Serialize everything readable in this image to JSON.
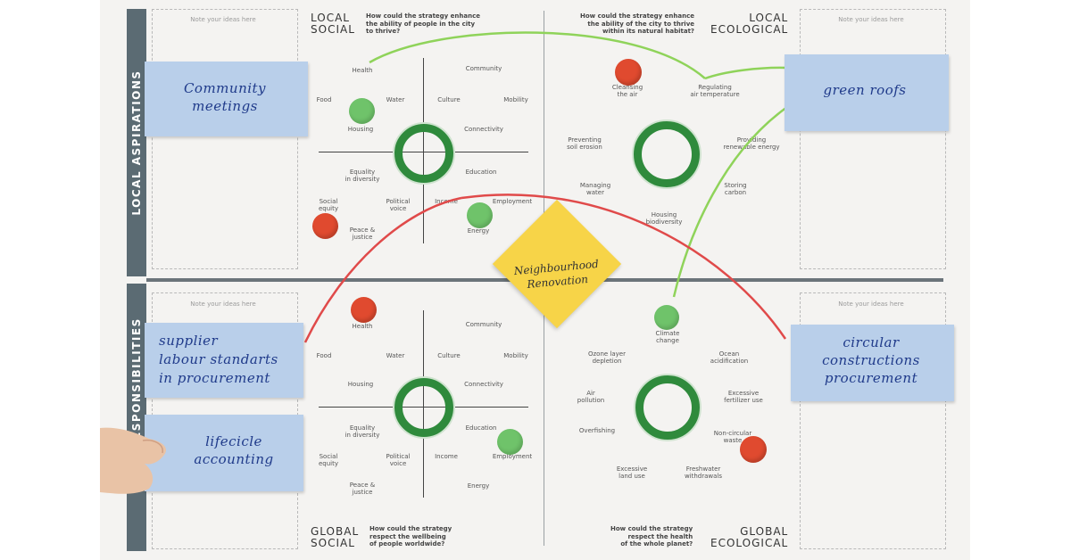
{
  "board": {
    "band_top": "LOCAL ASPIRATIONS",
    "band_bottom": "RESPONSIBILITIES",
    "note_hint": "Note your ideas here",
    "quadrants": {
      "local_social": {
        "title_1": "LOCAL",
        "title_2": "SOCIAL",
        "question": [
          "How could the strategy enhance",
          "the ability of people in the city",
          "to thrive?"
        ]
      },
      "local_ecological": {
        "title_1": "LOCAL",
        "title_2": "ECOLOGICAL",
        "question": [
          "How could the strategy enhance",
          "the ability of the city to thrive",
          "within its natural habitat?"
        ]
      },
      "global_social": {
        "title_1": "GLOBAL",
        "title_2": "SOCIAL",
        "question": [
          "How could the strategy",
          "respect the wellbeing",
          "of people worldwide?"
        ]
      },
      "global_ecological": {
        "title_1": "GLOBAL",
        "title_2": "ECOLOGICAL",
        "question": [
          "How could the strategy",
          "respect the health",
          "of the whole planet?"
        ]
      }
    },
    "local_social_labels": [
      "Health",
      "Community",
      "Food",
      "Water",
      "Culture",
      "Mobility",
      "Housing",
      "Connectivity",
      "Equality in diversity",
      "Education",
      "Social equity",
      "Political voice",
      "Income",
      "Employment",
      "Peace & justice",
      "Energy"
    ],
    "local_eco_labels": [
      "Cleansing the air",
      "Regulating air temperature",
      "Preventing soil erosion",
      "Providing renewable energy",
      "Managing water",
      "Storing carbon",
      "Housing biodiversity"
    ],
    "global_social_labels": [
      "Health",
      "Community",
      "Food",
      "Water",
      "Culture",
      "Mobility",
      "Housing",
      "Connectivity",
      "Equality in diversity",
      "Education",
      "Social equity",
      "Political voice",
      "Income",
      "Employment",
      "Peace & justice",
      "Energy"
    ],
    "global_eco_labels": [
      "Climate change",
      "Ozone layer depletion",
      "Ocean acidification",
      "Air pollution",
      "Excessive fertilizer use",
      "Overfishing",
      "Non-circular waste",
      "Excessive land use",
      "Freshwater withdrawals"
    ],
    "center_note": "Neighbourhood Renovation",
    "sticky_notes": {
      "community": "Community meetings",
      "green_roofs": "green roofs",
      "supplier": [
        "supplier",
        "labour standarts",
        "in procurement"
      ],
      "lifecycle": [
        "lifecicle",
        "accounting"
      ],
      "circular": [
        "circular",
        "constructions",
        "procurement"
      ]
    },
    "colors": {
      "red": "#e04a2f",
      "green": "#6fc36a",
      "ring": "#2f8a3c",
      "note": "#b9cfea",
      "diamond": "#f7d448",
      "band": "#5b6b73"
    }
  }
}
